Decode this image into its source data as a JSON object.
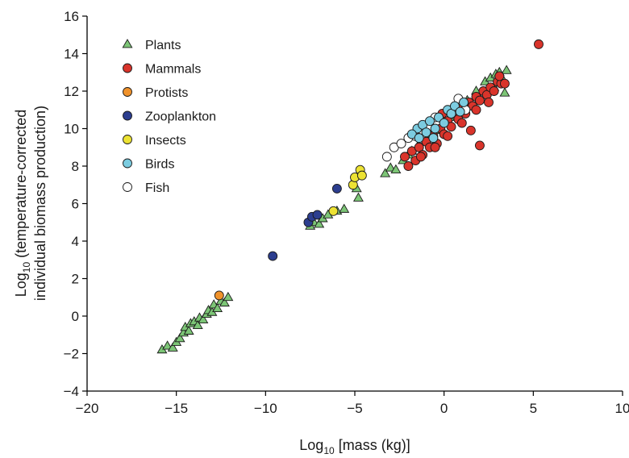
{
  "chart_data": {
    "type": "scatter",
    "title": "",
    "xlabel": {
      "prefix": "Log",
      "sub": "10",
      "suffix": " [mass (kg)]"
    },
    "ylabel": {
      "line1_prefix": "Log",
      "line1_sub": "10",
      "line1_suffix": " (temperature-corrected",
      "line2": "individual biomass production)"
    },
    "xlim": [
      -20,
      10
    ],
    "ylim": [
      -4,
      16
    ],
    "xticks": [
      -20,
      -15,
      -10,
      -5,
      0,
      5,
      10
    ],
    "xtick_labels": [
      "−20",
      "−15",
      "−10",
      "−5",
      "0",
      "5",
      "10"
    ],
    "yticks": [
      -4,
      -2,
      0,
      2,
      4,
      6,
      8,
      10,
      12,
      14,
      16
    ],
    "ytick_labels": [
      "−4",
      "−2",
      "0",
      "2",
      "4",
      "6",
      "8",
      "10",
      "12",
      "14",
      "16"
    ],
    "grid": false,
    "legend_position": "top-left",
    "series": [
      {
        "name": "Plants",
        "marker": "triangle",
        "color": "#7cc576",
        "points": [
          [
            -15.8,
            -1.8
          ],
          [
            -15.5,
            -1.6
          ],
          [
            -15.2,
            -1.7
          ],
          [
            -15.0,
            -1.4
          ],
          [
            -14.8,
            -1.2
          ],
          [
            -14.6,
            -0.9
          ],
          [
            -14.5,
            -0.6
          ],
          [
            -14.3,
            -0.8
          ],
          [
            -14.2,
            -0.4
          ],
          [
            -14.0,
            -0.3
          ],
          [
            -13.8,
            -0.5
          ],
          [
            -13.7,
            -0.1
          ],
          [
            -13.5,
            -0.2
          ],
          [
            -13.3,
            0.1
          ],
          [
            -13.2,
            0.3
          ],
          [
            -13.0,
            0.2
          ],
          [
            -12.9,
            0.6
          ],
          [
            -12.7,
            0.4
          ],
          [
            -12.5,
            0.8
          ],
          [
            -12.3,
            0.7
          ],
          [
            -12.1,
            1.0
          ],
          [
            -7.5,
            4.8
          ],
          [
            -7.3,
            5.0
          ],
          [
            -7.0,
            4.9
          ],
          [
            -6.8,
            5.2
          ],
          [
            -6.5,
            5.4
          ],
          [
            -6.0,
            5.6
          ],
          [
            -5.6,
            5.7
          ],
          [
            -4.8,
            6.3
          ],
          [
            -4.9,
            6.8
          ],
          [
            -3.3,
            7.6
          ],
          [
            -3.0,
            7.9
          ],
          [
            -2.7,
            7.8
          ],
          [
            -2.3,
            8.3
          ],
          [
            -2.0,
            8.6
          ],
          [
            -1.5,
            9.0
          ],
          [
            -1.0,
            9.4
          ],
          [
            -0.5,
            9.9
          ],
          [
            0.3,
            10.6
          ],
          [
            0.8,
            11.0
          ],
          [
            1.3,
            11.5
          ],
          [
            1.8,
            12.0
          ],
          [
            2.3,
            12.5
          ],
          [
            2.6,
            12.7
          ],
          [
            2.9,
            12.9
          ],
          [
            3.1,
            13.0
          ],
          [
            3.5,
            13.1
          ],
          [
            3.3,
            12.6
          ],
          [
            2.8,
            12.2
          ],
          [
            2.0,
            11.6
          ],
          [
            1.0,
            10.9
          ],
          [
            0.0,
            10.5
          ],
          [
            -0.8,
            9.7
          ],
          [
            -1.8,
            8.8
          ],
          [
            3.4,
            11.9
          ]
        ]
      },
      {
        "name": "Mammals",
        "marker": "circle",
        "color": "#d9342b",
        "points": [
          [
            -2.2,
            8.5
          ],
          [
            -2.0,
            8.0
          ],
          [
            -1.8,
            8.8
          ],
          [
            -1.6,
            8.3
          ],
          [
            -1.4,
            9.0
          ],
          [
            -1.2,
            8.6
          ],
          [
            -1.0,
            9.3
          ],
          [
            -0.8,
            9.0
          ],
          [
            -0.6,
            9.6
          ],
          [
            -0.4,
            9.2
          ],
          [
            -0.2,
            10.0
          ],
          [
            0.0,
            9.7
          ],
          [
            0.2,
            10.4
          ],
          [
            0.4,
            10.1
          ],
          [
            0.6,
            10.8
          ],
          [
            0.8,
            10.5
          ],
          [
            1.0,
            11.1
          ],
          [
            1.2,
            10.8
          ],
          [
            1.4,
            11.4
          ],
          [
            1.6,
            11.2
          ],
          [
            1.8,
            11.7
          ],
          [
            2.0,
            11.5
          ],
          [
            2.2,
            12.0
          ],
          [
            2.4,
            11.8
          ],
          [
            2.6,
            12.2
          ],
          [
            2.8,
            12.0
          ],
          [
            3.0,
            12.5
          ],
          [
            3.2,
            12.4
          ],
          [
            3.4,
            12.4
          ],
          [
            3.1,
            12.8
          ],
          [
            2.5,
            11.4
          ],
          [
            1.8,
            11.0
          ],
          [
            1.0,
            10.3
          ],
          [
            0.2,
            9.6
          ],
          [
            -0.5,
            9.0
          ],
          [
            -1.3,
            8.5
          ],
          [
            -0.1,
            10.8
          ],
          [
            1.5,
            9.9
          ],
          [
            2.0,
            9.1
          ],
          [
            5.3,
            14.5
          ]
        ]
      },
      {
        "name": "Protists",
        "marker": "circle",
        "color": "#f0922b",
        "points": [
          [
            -12.6,
            1.1
          ]
        ]
      },
      {
        "name": "Zooplankton",
        "marker": "circle",
        "color": "#2c3e8f",
        "points": [
          [
            -9.6,
            3.2
          ],
          [
            -7.6,
            5.0
          ],
          [
            -7.4,
            5.3
          ],
          [
            -7.1,
            5.4
          ],
          [
            -6.0,
            6.8
          ]
        ]
      },
      {
        "name": "Insects",
        "marker": "circle",
        "color": "#ece233",
        "points": [
          [
            -6.2,
            5.6
          ],
          [
            -5.1,
            7.0
          ],
          [
            -5.0,
            7.4
          ],
          [
            -4.7,
            7.8
          ],
          [
            -4.6,
            7.5
          ]
        ]
      },
      {
        "name": "Birds",
        "marker": "circle",
        "color": "#7ccce0",
        "points": [
          [
            -1.5,
            10.0
          ],
          [
            -1.2,
            10.2
          ],
          [
            -1.0,
            9.8
          ],
          [
            -0.8,
            10.4
          ],
          [
            -0.5,
            10.0
          ],
          [
            -0.3,
            10.6
          ],
          [
            0.0,
            10.3
          ],
          [
            0.2,
            11.0
          ],
          [
            0.4,
            10.8
          ],
          [
            0.6,
            11.2
          ],
          [
            0.9,
            10.9
          ],
          [
            1.1,
            11.4
          ],
          [
            -0.6,
            9.5
          ],
          [
            -1.8,
            9.7
          ],
          [
            -1.4,
            9.5
          ]
        ]
      },
      {
        "name": "Fish",
        "marker": "circle",
        "color": "#ffffff",
        "points": [
          [
            -3.2,
            8.5
          ],
          [
            -2.8,
            9.0
          ],
          [
            -2.4,
            9.2
          ],
          [
            -2.0,
            9.5
          ],
          [
            -1.6,
            9.6
          ],
          [
            -1.2,
            9.9
          ],
          [
            -0.8,
            10.1
          ],
          [
            -0.5,
            10.6
          ],
          [
            0.8,
            11.6
          ],
          [
            1.2,
            11.0
          ]
        ]
      }
    ]
  }
}
